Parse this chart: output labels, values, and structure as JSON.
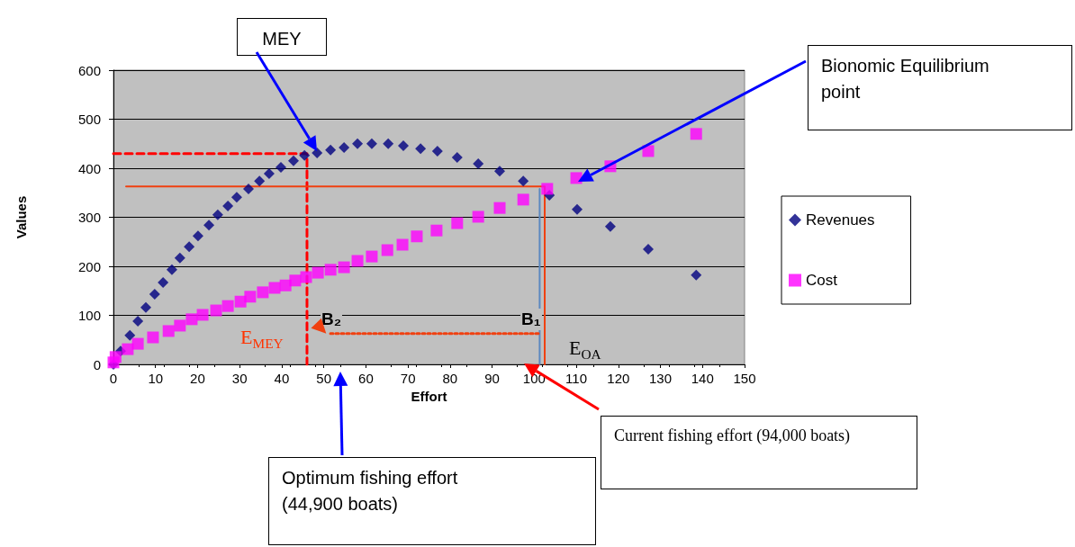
{
  "chart_data": {
    "type": "scatter",
    "xlabel": "Effort",
    "ylabel": "Values",
    "xlim": [
      0,
      150
    ],
    "xticks": [
      0,
      10,
      20,
      30,
      40,
      50,
      60,
      70,
      80,
      90,
      100,
      110,
      120,
      130,
      140,
      150
    ],
    "ylim": [
      0,
      600
    ],
    "yticks": [
      0,
      100,
      200,
      300,
      400,
      500,
      600
    ],
    "grid": "y",
    "legend": "right",
    "series": [
      {
        "name": "Revenues",
        "marker": "diamond",
        "color": "#000080",
        "x": [
          0,
          1.7,
          3.9,
          5.8,
          7.7,
          9.8,
          11.8,
          13.9,
          15.8,
          18.0,
          20.1,
          22.7,
          24.8,
          27.2,
          29.3,
          32.1,
          34.7,
          37.0,
          39.8,
          42.8,
          45.4,
          48.4,
          51.6,
          54.8,
          58.0,
          61.4,
          65.3,
          68.9,
          73.0,
          77.0,
          81.7,
          86.7,
          91.8,
          97.4,
          103.6,
          110.2,
          118.1,
          127.1,
          138.5
        ],
        "values": [
          0,
          27,
          59,
          88,
          116,
          143,
          167,
          193,
          217,
          240,
          262,
          284,
          305,
          323,
          341,
          358,
          374,
          389,
          402,
          415,
          426,
          431,
          437,
          442,
          450,
          450,
          450,
          446,
          440,
          435,
          422,
          409,
          394,
          374,
          345,
          316,
          281,
          235,
          182
        ]
      },
      {
        "name": "Cost",
        "marker": "square",
        "color": "#ff00ff",
        "x": [
          0,
          0.5,
          3.4,
          5.8,
          9.4,
          13.1,
          15.8,
          18.6,
          21.2,
          24.4,
          27.2,
          30.2,
          32.5,
          35.5,
          38.3,
          40.9,
          43.2,
          45.8,
          48.6,
          51.6,
          54.8,
          58.0,
          61.4,
          65.1,
          68.7,
          72.1,
          76.8,
          81.7,
          86.7,
          91.8,
          97.4,
          103.1,
          110.0,
          118.1,
          127.1,
          138.5
        ],
        "values": [
          4,
          15,
          31,
          42,
          55,
          68,
          79,
          92,
          101,
          110,
          119,
          128,
          138,
          147,
          156,
          161,
          171,
          178,
          187,
          193,
          198,
          211,
          220,
          233,
          244,
          261,
          273,
          288,
          301,
          319,
          336,
          358,
          380,
          404,
          435,
          470
        ]
      },
      {
        "type": "line",
        "marker": "none",
        "line_style": "dashed",
        "color": "#ff0000",
        "x": [
          0,
          46,
          46
        ],
        "values": [
          430,
          430,
          0
        ]
      },
      {
        "type": "line",
        "marker": "none",
        "line_style": "solid",
        "color": "#f04010",
        "x": [
          3,
          102.5,
          102.5
        ],
        "values": [
          363,
          363,
          0
        ]
      },
      {
        "type": "line",
        "marker": "none",
        "line_style": "solid",
        "color": "#5b88c0",
        "x": [
          101.3,
          101.3
        ],
        "values": [
          0,
          358
        ]
      },
      {
        "type": "line",
        "marker": "none",
        "line_style": "dotted",
        "color": "#f04010",
        "x": [
          101,
          51
        ],
        "values": [
          63,
          63
        ]
      }
    ],
    "annotations": [
      "MEY",
      "Bionomic Equilibrium point",
      "Optimum fishing effort (44,900 boats)",
      "Current fishing effort (94,000 boats)",
      "B₂",
      "B₁",
      "E$_{MEY}$",
      "E$_{OA}$"
    ]
  }
}
